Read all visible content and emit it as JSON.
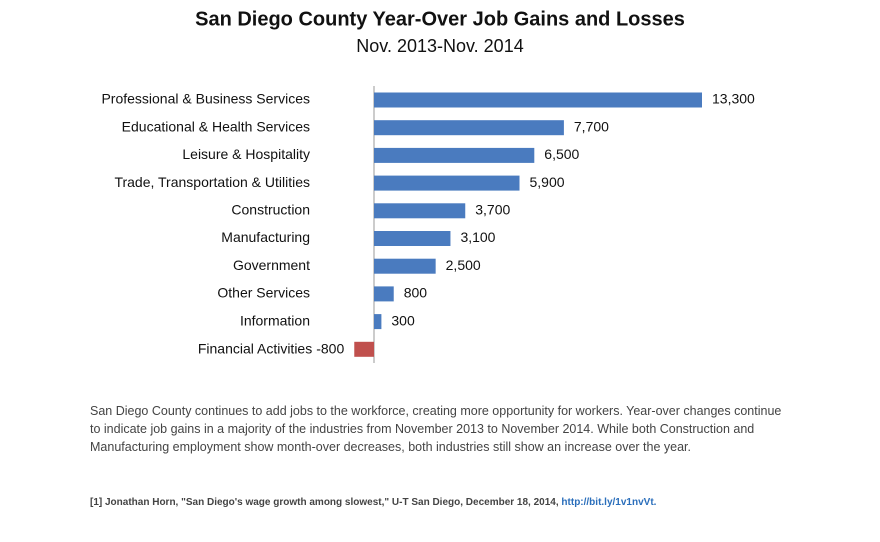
{
  "chart_data": {
    "type": "barh",
    "title": "San Diego County Year-Over Job Gains and Losses",
    "subtitle": "Nov. 2013-Nov. 2014",
    "categories": [
      "Professional & Business Services",
      "Educational & Health Services",
      "Leisure & Hospitality",
      "Trade, Transportation & Utilities",
      "Construction",
      "Manufacturing",
      "Government",
      "Other Services",
      "Information",
      "Financial Activities"
    ],
    "values": [
      13300,
      7700,
      6500,
      5900,
      3700,
      3100,
      2500,
      800,
      300,
      -800
    ],
    "value_labels": [
      "13,300",
      "7,700",
      "6,500",
      "5,900",
      "3,700",
      "3,100",
      "2,500",
      "800",
      "300",
      "-800"
    ],
    "color": "#4a7bbf",
    "negative_color": "#c0504d"
  },
  "note": "San Diego County continues to add jobs to the workforce, creating more opportunity for workers. Year-over changes continue to indicate job gains in a majority of the industries from November 2013 to November 2014. While both Construction and Manufacturing employment show month-over decreases, both industries still show an increase over the year.",
  "source": {
    "text": "[1] Jonathan Horn, \"San Diego's wage growth among slowest,\" U-T San Diego, December 18, 2014,",
    "link": "http://bit.ly/1v1nvVt."
  }
}
